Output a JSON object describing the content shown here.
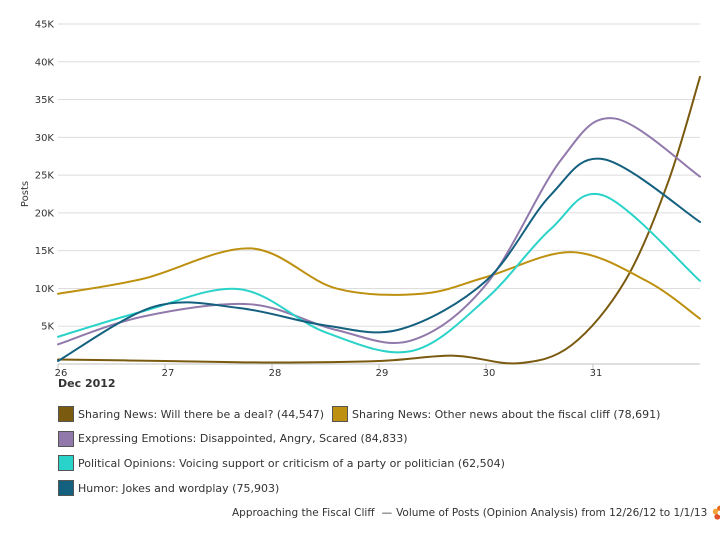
{
  "chart_data": {
    "type": "line",
    "ylabel": "Posts",
    "xlabel": "",
    "x_month_label": "Dec 2012",
    "x_ticks": [
      "26",
      "27",
      "28",
      "29",
      "30",
      "31"
    ],
    "x_range": [
      26,
      32
    ],
    "ylim": [
      0,
      45000
    ],
    "y_ticks": [
      5000,
      10000,
      15000,
      20000,
      25000,
      30000,
      35000,
      40000,
      45000
    ],
    "y_tick_labels": [
      "5K",
      "10K",
      "15K",
      "20K",
      "25K",
      "30K",
      "35K",
      "40K",
      "45K"
    ],
    "grid": true,
    "legend_position": "bottom",
    "series": [
      {
        "name": "Sharing News: Will there be a deal? (44,547)",
        "color": "#7a5a0f",
        "points": [
          [
            26.0,
            600
          ],
          [
            27.0,
            400
          ],
          [
            28.0,
            200
          ],
          [
            29.0,
            400
          ],
          [
            29.7,
            1100
          ],
          [
            30.3,
            100
          ],
          [
            30.8,
            2500
          ],
          [
            31.3,
            11000
          ],
          [
            31.7,
            24000
          ],
          [
            32.0,
            38000
          ]
        ]
      },
      {
        "name": "Sharing News: Other news about the fiscal cliff (78,691)",
        "color": "#be9010",
        "points": [
          [
            26.0,
            9300
          ],
          [
            26.8,
            11300
          ],
          [
            27.8,
            15300
          ],
          [
            28.6,
            10000
          ],
          [
            29.4,
            9300
          ],
          [
            30.0,
            11500
          ],
          [
            30.8,
            14800
          ],
          [
            31.5,
            11000
          ],
          [
            32.0,
            6000
          ]
        ]
      },
      {
        "name": "Expressing Emotions: Disappointed, Angry, Scared (84,833)",
        "color": "#9179ac",
        "points": [
          [
            26.0,
            2600
          ],
          [
            26.8,
            6300
          ],
          [
            27.8,
            7900
          ],
          [
            28.6,
            4500
          ],
          [
            29.3,
            3100
          ],
          [
            30.0,
            10500
          ],
          [
            30.7,
            27000
          ],
          [
            31.2,
            32500
          ],
          [
            32.0,
            24800
          ]
        ]
      },
      {
        "name": "Political Opinions: Voicing support or criticism of a party or politician (62,504)",
        "color": "#2ad3c9",
        "points": [
          [
            26.0,
            3600
          ],
          [
            26.8,
            7000
          ],
          [
            27.7,
            9900
          ],
          [
            28.5,
            4200
          ],
          [
            29.3,
            1700
          ],
          [
            30.0,
            8600
          ],
          [
            30.6,
            17800
          ],
          [
            31.1,
            22300
          ],
          [
            32.0,
            11000
          ]
        ]
      },
      {
        "name": "Humor: Jokes and wordplay (75,903)",
        "color": "#14607f",
        "points": [
          [
            26.0,
            400
          ],
          [
            26.9,
            7600
          ],
          [
            27.7,
            7400
          ],
          [
            28.5,
            5100
          ],
          [
            29.2,
            4600
          ],
          [
            30.0,
            11000
          ],
          [
            30.6,
            22300
          ],
          [
            31.1,
            27100
          ],
          [
            32.0,
            18800
          ]
        ]
      }
    ]
  },
  "legend": {
    "rows": [
      [
        {
          "label": "Sharing News: Will there be a deal? (44,547)",
          "color": "#7a5a0f"
        },
        {
          "label": "Sharing News: Other news about the fiscal cliff (78,691)",
          "color": "#be9010"
        }
      ],
      [
        {
          "label": "Expressing Emotions: Disappointed, Angry, Scared (84,833)",
          "color": "#9179ac"
        }
      ],
      [
        {
          "label": "Political Opinions: Voicing support or criticism of a party or politician (62,504)",
          "color": "#2ad3c9"
        }
      ],
      [
        {
          "label": "Humor: Jokes and wordplay (75,903)",
          "color": "#14607f"
        }
      ]
    ]
  },
  "footer": {
    "source_name": "Approaching the Fiscal Cliff",
    "separator": "—",
    "description": "Volume of Posts (Opinion Analysis) from 12/26/12 to 1/1/13",
    "logo_icon": "flower-logo-icon"
  }
}
